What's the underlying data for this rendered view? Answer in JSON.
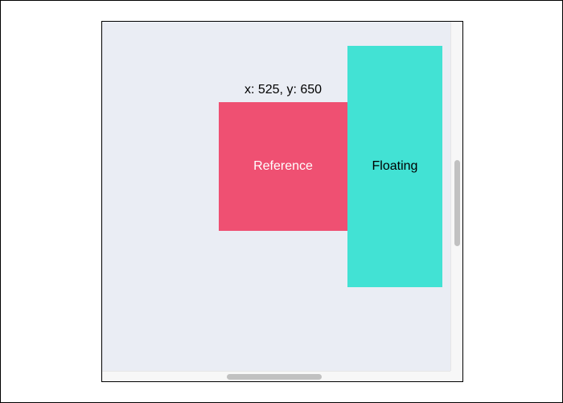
{
  "demo": {
    "coordinates_label": "x: 525, y: 650",
    "reference_label": "Reference",
    "floating_label": "Floating"
  },
  "colors": {
    "viewport_background": "#eaedf4",
    "reference": "#ef5072",
    "floating": "#42e2d4",
    "scrollbar_thumb": "#c1c1c1",
    "scrollbar_track": "#f7f7f7"
  }
}
